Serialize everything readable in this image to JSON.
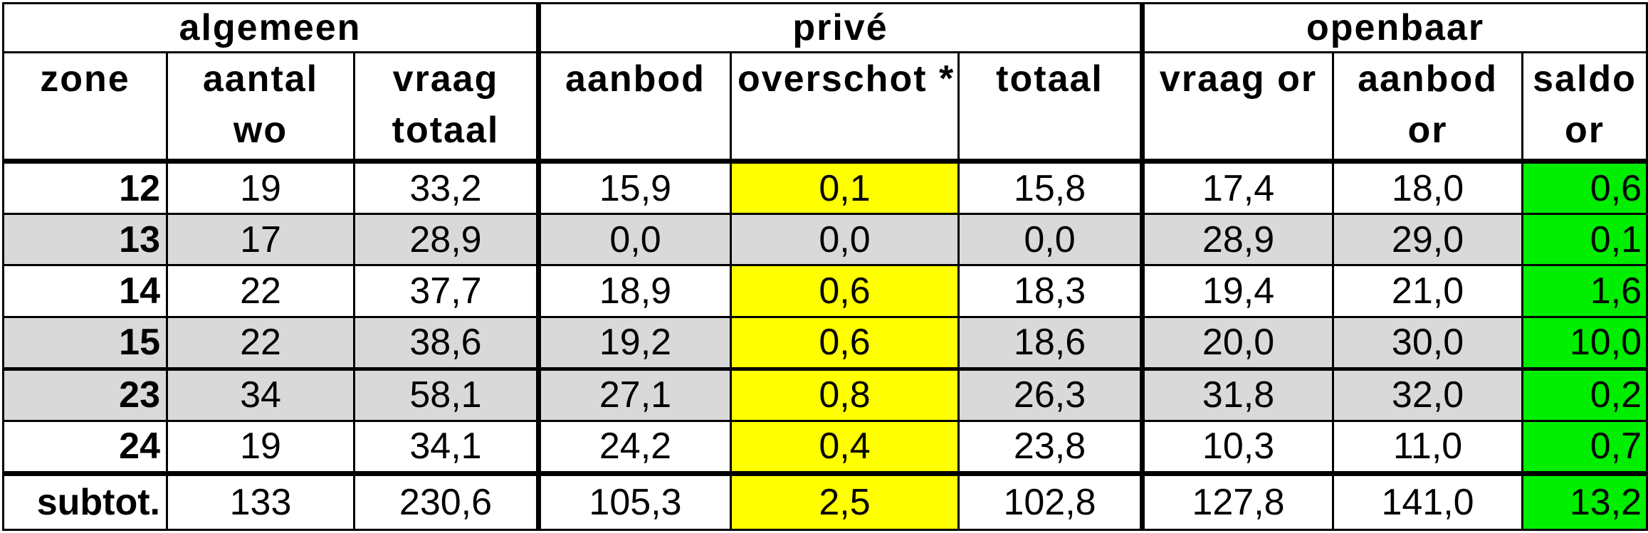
{
  "groups": {
    "algemeen": "algemeen",
    "prive": "privé",
    "openbaar": "openbaar"
  },
  "headers": {
    "zone": "zone",
    "aantal_wo_1": "aantal",
    "aantal_wo_2": "wo",
    "vraag_totaal_1": "vraag",
    "vraag_totaal_2": "totaal",
    "aanbod": "aanbod",
    "overschot": "overschot *",
    "totaal": "totaal",
    "vraag_or": "vraag or",
    "aanbod_or_1": "aanbod",
    "aanbod_or_2": "or",
    "saldo_or_1": "saldo",
    "saldo_or_2": "or"
  },
  "colors": {
    "highlight_yellow": "#ffff00",
    "highlight_green": "#00ee00",
    "row_shade": "#d9d9d9"
  },
  "rows": [
    {
      "zone": "12",
      "aantal_wo": "19",
      "vraag_totaal": "33,2",
      "aanbod": "15,9",
      "overschot": "0,1",
      "totaal": "15,8",
      "vraag_or": "17,4",
      "aanbod_or": "18,0",
      "saldo_or": "0,6"
    },
    {
      "zone": "13",
      "aantal_wo": "17",
      "vraag_totaal": "28,9",
      "aanbod": "0,0",
      "overschot": "0,0",
      "totaal": "0,0",
      "vraag_or": "28,9",
      "aanbod_or": "29,0",
      "saldo_or": "0,1"
    },
    {
      "zone": "14",
      "aantal_wo": "22",
      "vraag_totaal": "37,7",
      "aanbod": "18,9",
      "overschot": "0,6",
      "totaal": "18,3",
      "vraag_or": "19,4",
      "aanbod_or": "21,0",
      "saldo_or": "1,6"
    },
    {
      "zone": "15",
      "aantal_wo": "22",
      "vraag_totaal": "38,6",
      "aanbod": "19,2",
      "overschot": "0,6",
      "totaal": "18,6",
      "vraag_or": "20,0",
      "aanbod_or": "30,0",
      "saldo_or": "10,0"
    },
    {
      "zone": "23",
      "aantal_wo": "34",
      "vraag_totaal": "58,1",
      "aanbod": "27,1",
      "overschot": "0,8",
      "totaal": "26,3",
      "vraag_or": "31,8",
      "aanbod_or": "32,0",
      "saldo_or": "0,2"
    },
    {
      "zone": "24",
      "aantal_wo": "19",
      "vraag_totaal": "34,1",
      "aanbod": "24,2",
      "overschot": "0,4",
      "totaal": "23,8",
      "vraag_or": "10,3",
      "aanbod_or": "11,0",
      "saldo_or": "0,7"
    }
  ],
  "subtotal": {
    "zone": "subtot.",
    "aantal_wo": "133",
    "vraag_totaal": "230,6",
    "aanbod": "105,3",
    "overschot": "2,5",
    "totaal": "102,8",
    "vraag_or": "127,8",
    "aanbod_or": "141,0",
    "saldo_or": "13,2"
  }
}
